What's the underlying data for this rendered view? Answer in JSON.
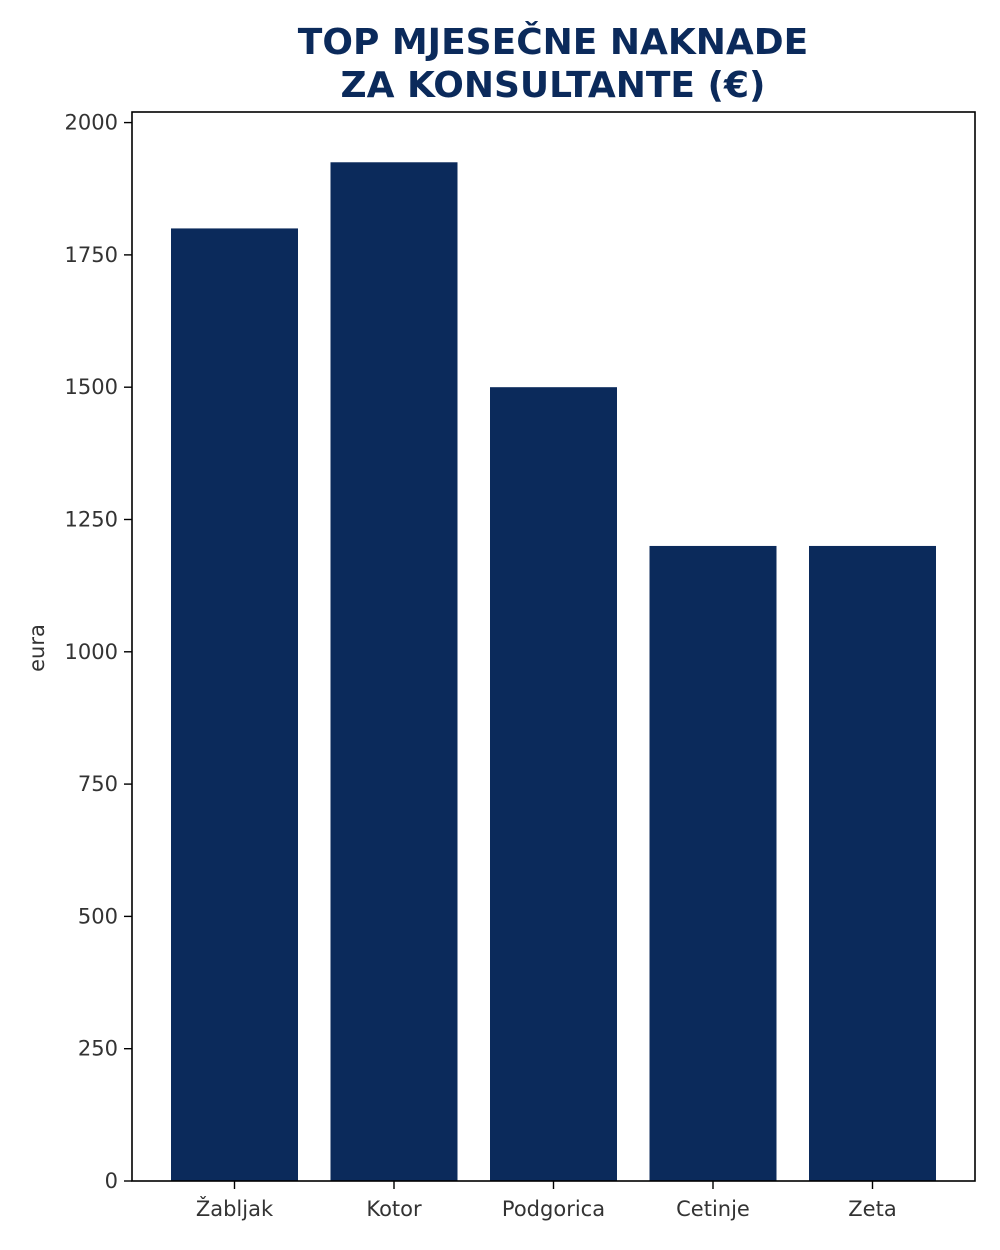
{
  "chart_data": {
    "type": "bar",
    "title_lines": [
      "TOP MJESEČNE NAKNADE",
      "ZA KONSULTANTE (€)"
    ],
    "ylabel": "eura",
    "xlabel": "",
    "categories": [
      "Žabljak",
      "Kotor",
      "Podgorica",
      "Cetinje",
      "Zeta"
    ],
    "values": [
      1800,
      1925,
      1500,
      1200,
      1200
    ],
    "ylim": [
      0,
      2000
    ],
    "yticks": [
      0,
      250,
      500,
      750,
      1000,
      1250,
      1500,
      1750,
      2000
    ],
    "grid": false,
    "legend": "none",
    "bar_color": "#0b2a5b",
    "title_color": "#0b2a5b"
  }
}
